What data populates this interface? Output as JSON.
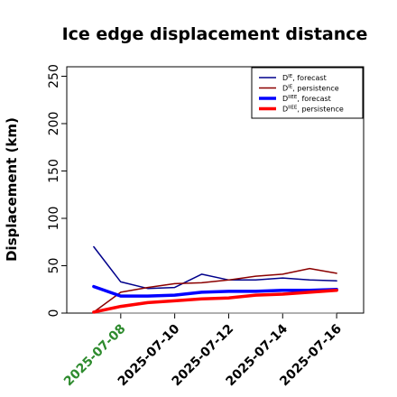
{
  "chart_data": {
    "type": "line",
    "title": "Ice edge displacement distance",
    "ylabel": "Displacement (km)",
    "xlabel": "",
    "x": [
      "2025-07-07",
      "2025-07-08",
      "2025-07-09",
      "2025-07-10",
      "2025-07-11",
      "2025-07-12",
      "2025-07-13",
      "2025-07-14",
      "2025-07-15",
      "2025-07-16"
    ],
    "xticks": [
      "2025-07-08",
      "2025-07-10",
      "2025-07-12",
      "2025-07-14",
      "2025-07-16"
    ],
    "highlighted_tick": "2025-07-08",
    "highlight_color": "#2e8b2e",
    "xlim": [
      "2025-07-06",
      "2025-07-17"
    ],
    "ylim": [
      0,
      260
    ],
    "yticks": [
      0,
      50,
      100,
      150,
      200,
      250
    ],
    "grid": false,
    "legend_position": "top-right",
    "series": [
      {
        "name": "D",
        "sup": "IE",
        "suffix": ", forecast",
        "color": "#00008b",
        "width": 1.5,
        "values": [
          70,
          33,
          26,
          27,
          41,
          35,
          35,
          37,
          35,
          34
        ]
      },
      {
        "name": "D",
        "sup": "IE",
        "suffix": ", persistence",
        "color": "#8b0000",
        "width": 1.5,
        "values": [
          1,
          22,
          27,
          31,
          32,
          35,
          39,
          41,
          47,
          42
        ]
      },
      {
        "name": "D",
        "sup": "IIEE",
        "suffix": ", forecast",
        "color": "#0000ff",
        "width": 3.5,
        "values": [
          28,
          18,
          18,
          19,
          22,
          23,
          23,
          24,
          24,
          25
        ]
      },
      {
        "name": "D",
        "sup": "IIEE",
        "suffix": ", persistence",
        "color": "#ff0000",
        "width": 3.5,
        "values": [
          1,
          7,
          11,
          13,
          15,
          16,
          19,
          20,
          22,
          24
        ]
      }
    ],
    "baseline": {
      "value": 0,
      "color": "#808080",
      "x_from": "2025-07-07",
      "x_to": "2025-07-16"
    }
  }
}
